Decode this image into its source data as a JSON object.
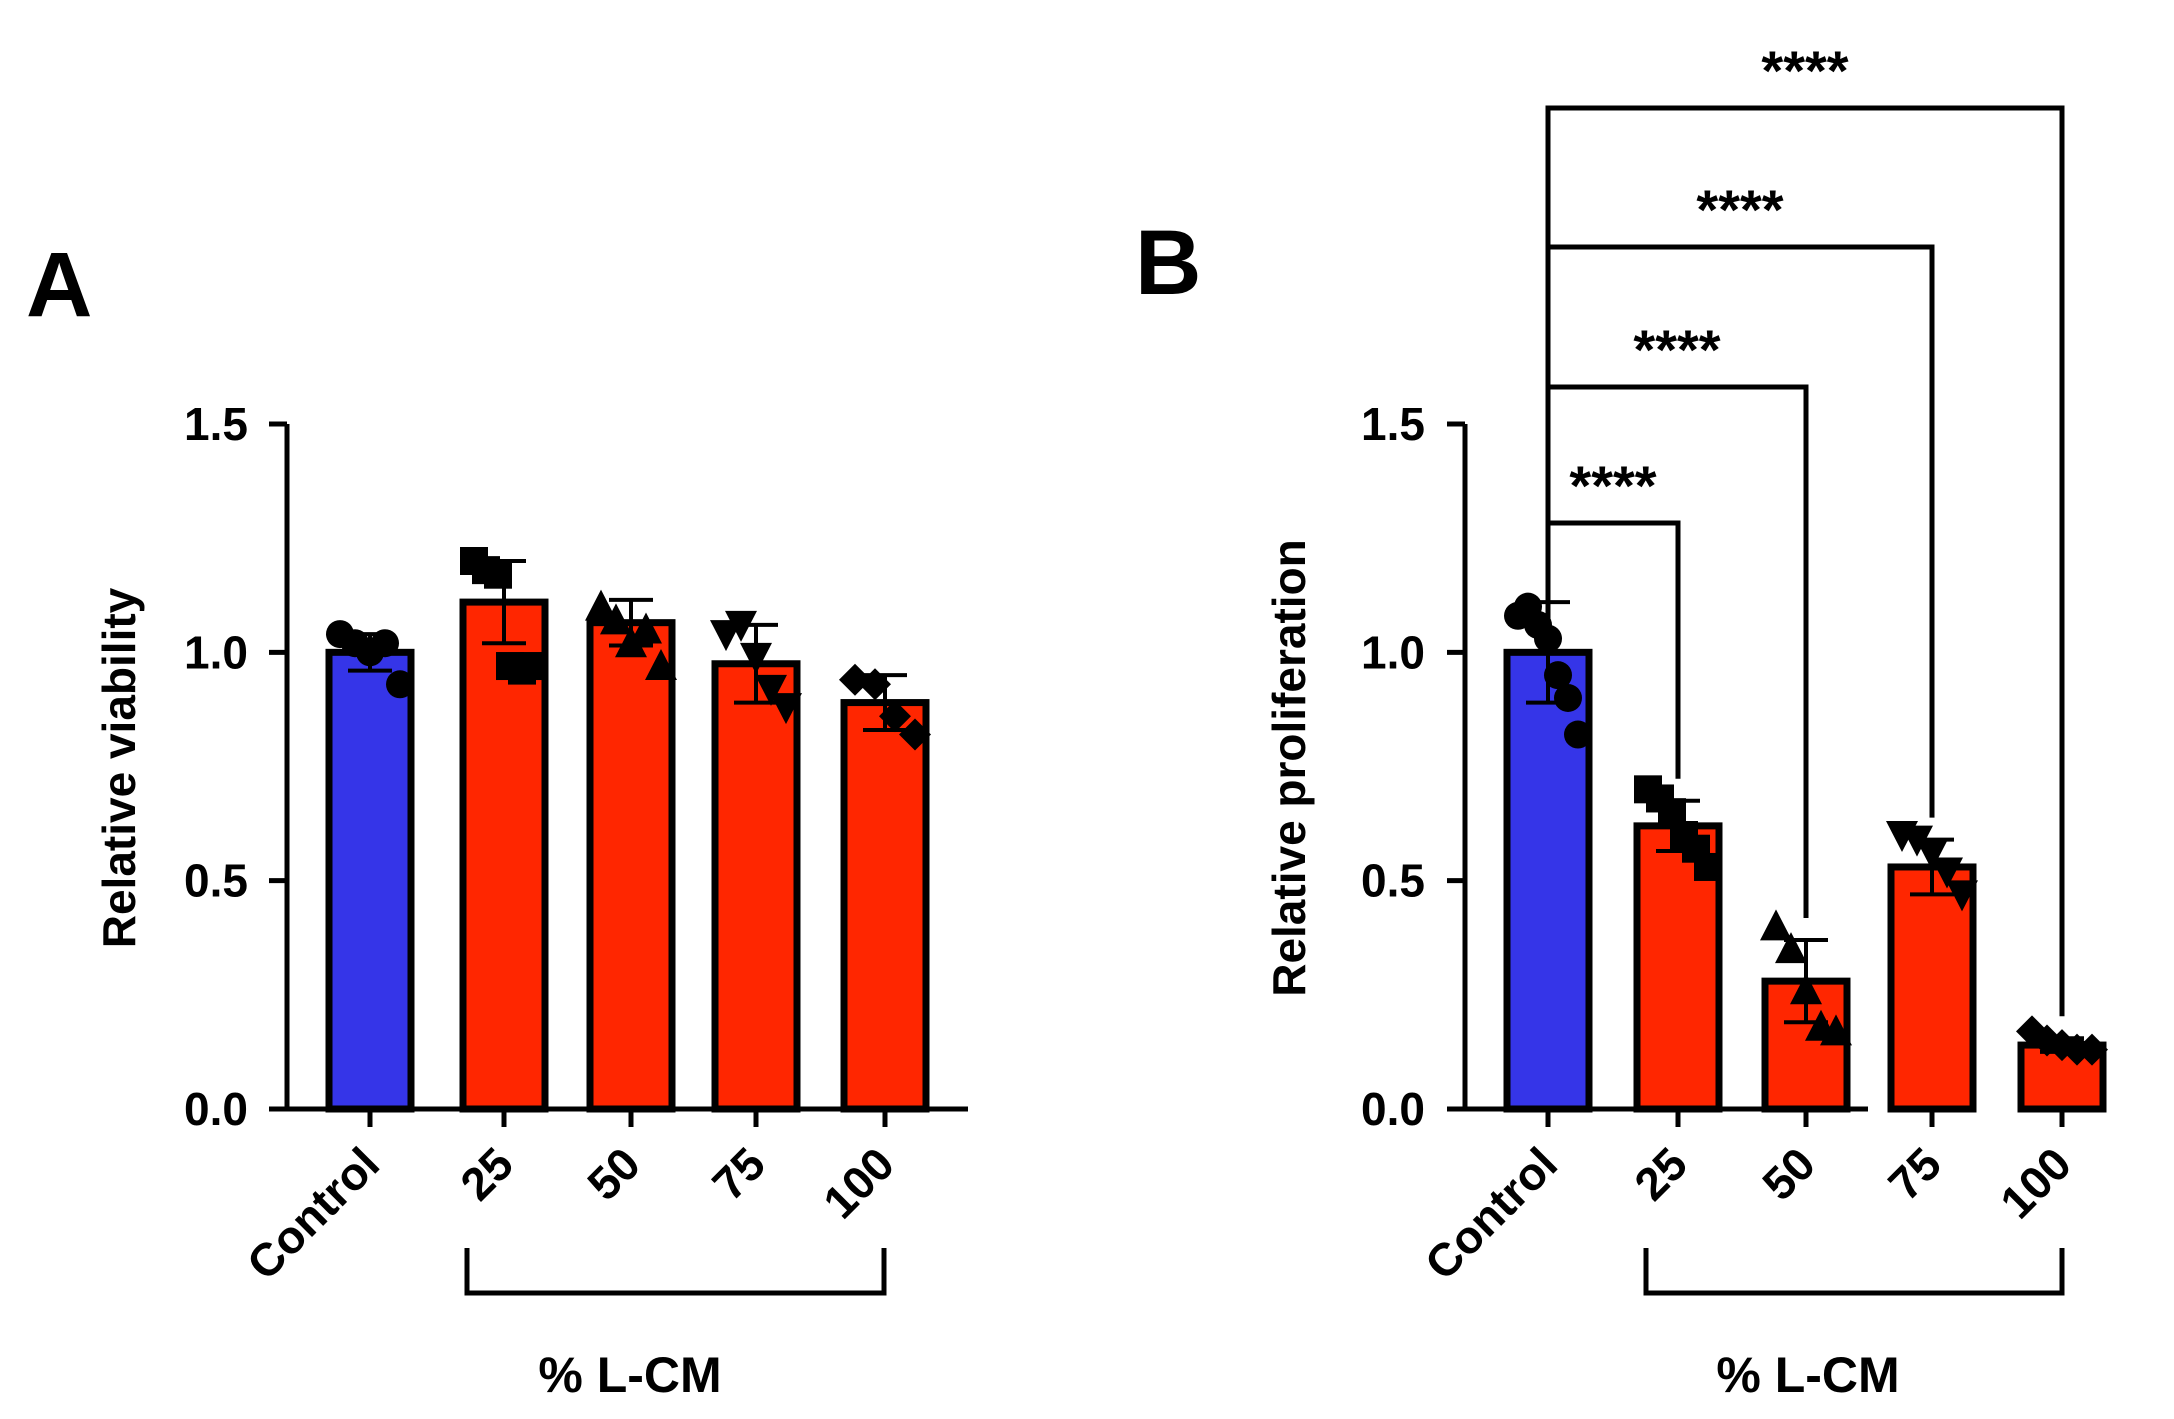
{
  "chart_data": [
    {
      "panel": "A",
      "type": "bar",
      "categories": [
        "Control",
        "25",
        "50",
        "75",
        "100"
      ],
      "values": [
        1.0,
        1.11,
        1.065,
        0.975,
        0.89
      ],
      "error": [
        0.04,
        0.09,
        0.05,
        0.085,
        0.06
      ],
      "points": [
        [
          1.04,
          1.02,
          1.0,
          1.02,
          0.93
        ],
        [
          1.2,
          1.18,
          1.17,
          0.97,
          0.96,
          0.97
        ],
        [
          1.1,
          1.07,
          1.02,
          1.05,
          0.97
        ],
        [
          1.04,
          1.06,
          0.99,
          0.92,
          0.88
        ],
        [
          0.94,
          0.93,
          0.86,
          0.82
        ]
      ],
      "marker_shapes": [
        "circle",
        "square",
        "triangle-up",
        "triangle-down",
        "diamond"
      ],
      "bar_colors": [
        "#3535e8",
        "#ff2600",
        "#ff2600",
        "#ff2600",
        "#ff2600"
      ],
      "ylabel": "Relative viability",
      "xlabel": "% L-CM",
      "ylim": [
        0,
        1.5
      ],
      "yticks": [
        "0.0",
        "0.5",
        "1.0",
        "1.5"
      ],
      "group_bracket": [
        "25",
        "100"
      ],
      "significance": []
    },
    {
      "panel": "B",
      "type": "bar",
      "categories": [
        "Control",
        "25",
        "50",
        "75",
        "100"
      ],
      "values": [
        1.0,
        0.62,
        0.28,
        0.53,
        0.14
      ],
      "error": [
        0.11,
        0.055,
        0.09,
        0.06,
        0.015
      ],
      "points": [
        [
          1.08,
          1.1,
          1.06,
          1.03,
          0.95,
          0.9,
          0.82
        ],
        [
          0.7,
          0.68,
          0.65,
          0.6,
          0.57,
          0.53
        ],
        [
          0.4,
          0.35,
          0.26,
          0.18,
          0.17
        ],
        [
          0.6,
          0.59,
          0.56,
          0.52,
          0.47
        ],
        [
          0.17,
          0.15,
          0.14,
          0.13,
          0.13
        ]
      ],
      "marker_shapes": [
        "circle",
        "square",
        "triangle-up",
        "triangle-down",
        "diamond"
      ],
      "bar_colors": [
        "#3535e8",
        "#ff2600",
        "#ff2600",
        "#ff2600",
        "#ff2600"
      ],
      "ylabel": "Relative proliferation",
      "xlabel": "% L-CM",
      "ylim": [
        0,
        1.5
      ],
      "yticks": [
        "0.0",
        "0.5",
        "1.0",
        "1.5"
      ],
      "group_bracket": [
        "25",
        "100"
      ],
      "significance": [
        {
          "from": "Control",
          "to": "25",
          "label": "****"
        },
        {
          "from": "Control",
          "to": "50",
          "label": "****"
        },
        {
          "from": "Control",
          "to": "75",
          "label": "****"
        },
        {
          "from": "Control",
          "to": "100",
          "label": "****"
        }
      ]
    }
  ]
}
